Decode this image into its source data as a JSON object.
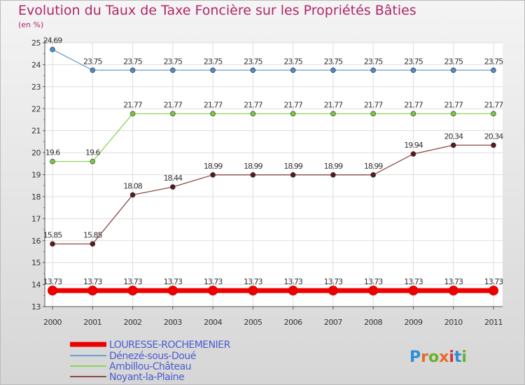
{
  "title": "Evolution du Taux de Taxe Foncière sur les Propriétés Bâties",
  "unit_label": "(en %)",
  "logo_text": "Proxiti",
  "chart_data": {
    "type": "line",
    "title": "Evolution du Taux de Taxe Foncière sur les Propriétés Bâties",
    "ylabel": "(en %)",
    "xlabel": "",
    "x": [
      "2000",
      "2001",
      "2002",
      "2003",
      "2004",
      "2005",
      "2006",
      "2007",
      "2008",
      "2009",
      "2010",
      "2011"
    ],
    "ylim": [
      13,
      25
    ],
    "yticks": [
      "13",
      "14",
      "15",
      "16",
      "17",
      "18",
      "19",
      "20",
      "21",
      "22",
      "23",
      "24",
      "25"
    ],
    "series": [
      {
        "name": "LOURESSE-ROCHEMENIER",
        "color": "#ee0000",
        "marker": "#ee0000",
        "width": 7,
        "r": 6.5,
        "values": [
          13.73,
          13.73,
          13.73,
          13.73,
          13.73,
          13.73,
          13.73,
          13.73,
          13.73,
          13.73,
          13.73,
          13.73
        ],
        "labels": [
          "13.73",
          "13.73",
          "13.73",
          "13.73",
          "13.73",
          "13.73",
          "13.73",
          "13.73",
          "13.73",
          "13.73",
          "13.73",
          "13.73"
        ]
      },
      {
        "name": "Dénezé-sous-Doué",
        "color": "#6a9fd0",
        "marker": "#4a8cc8",
        "width": 1.3,
        "r": 3.5,
        "values": [
          24.69,
          23.75,
          23.75,
          23.75,
          23.75,
          23.75,
          23.75,
          23.75,
          23.75,
          23.75,
          23.75,
          23.75
        ],
        "labels": [
          "24.69",
          "23.75",
          "23.75",
          "23.75",
          "23.75",
          "23.75",
          "23.75",
          "23.75",
          "23.75",
          "23.75",
          "23.75",
          "23.75"
        ]
      },
      {
        "name": "Ambillou-Château",
        "color": "#8fd45a",
        "marker": "#7cc443",
        "width": 1.3,
        "r": 3.5,
        "values": [
          19.6,
          19.6,
          21.77,
          21.77,
          21.77,
          21.77,
          21.77,
          21.77,
          21.77,
          21.77,
          21.77,
          21.77
        ],
        "labels": [
          "19.6",
          "19.6",
          "21.77",
          "21.77",
          "21.77",
          "21.77",
          "21.77",
          "21.77",
          "21.77",
          "21.77",
          "21.77",
          "21.77"
        ]
      },
      {
        "name": "Noyant-la-Plaine",
        "color": "#8c4a4a",
        "marker": "#5a1a1a",
        "width": 1.3,
        "r": 3.5,
        "values": [
          15.85,
          15.85,
          18.08,
          18.44,
          18.99,
          18.99,
          18.99,
          18.99,
          18.99,
          19.94,
          20.34,
          20.34
        ],
        "labels": [
          "15.85",
          "15.85",
          "18.08",
          "18.44",
          "18.99",
          "18.99",
          "18.99",
          "18.99",
          "18.99",
          "19.94",
          "20.34",
          "20.34"
        ]
      }
    ],
    "grid": true,
    "legend": "bottom-left"
  }
}
